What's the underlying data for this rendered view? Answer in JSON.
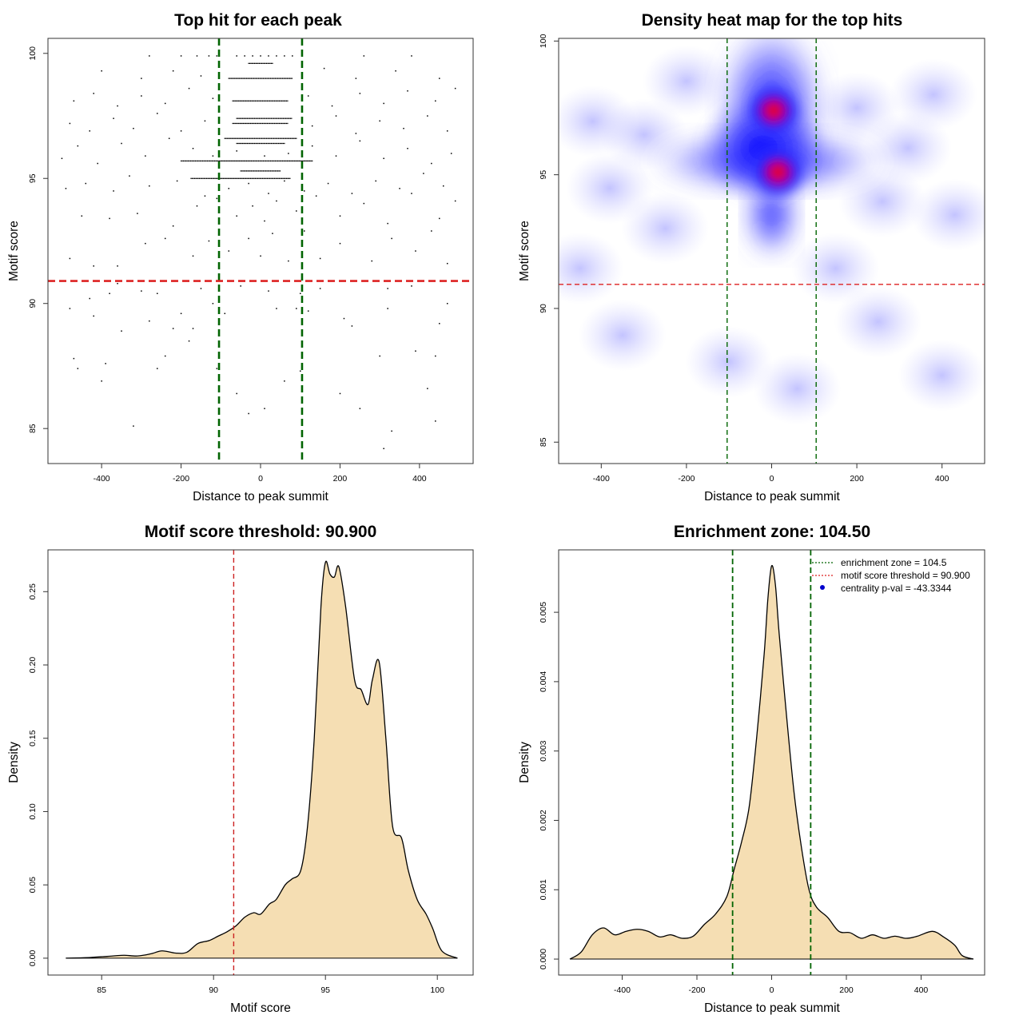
{
  "chart_data": [
    {
      "type": "scatter",
      "title": "Top hit for each peak",
      "xlabel": "Distance to peak summit",
      "ylabel": "Motif score",
      "xlim": [
        -535,
        535
      ],
      "ylim": [
        83.6,
        100.6
      ],
      "xticks": [
        -400,
        -200,
        0,
        200,
        400
      ],
      "xtick_labels": [
        "-400",
        "-200",
        "0",
        "200",
        "400"
      ],
      "yticks": [
        85,
        90,
        95,
        100
      ],
      "ytick_labels": [
        "85",
        "90",
        "95",
        "100"
      ],
      "grid": false,
      "point_color": "#000000",
      "dense_rows": [
        {
          "y": 95.7,
          "x_range": [
            -200,
            130
          ]
        },
        {
          "y": 95.0,
          "x_range": [
            -175,
            75
          ]
        },
        {
          "y": 97.4,
          "x_range": [
            -60,
            80
          ]
        },
        {
          "y": 97.2,
          "x_range": [
            -70,
            70
          ]
        },
        {
          "y": 96.6,
          "x_range": [
            -90,
            90
          ]
        },
        {
          "y": 96.4,
          "x_range": [
            -60,
            60
          ]
        },
        {
          "y": 98.1,
          "x_range": [
            -70,
            70
          ]
        },
        {
          "y": 95.3,
          "x_range": [
            -50,
            50
          ]
        },
        {
          "y": 99.0,
          "x_range": [
            -80,
            80
          ]
        },
        {
          "y": 99.6,
          "x_range": [
            -30,
            30
          ]
        }
      ],
      "points": [
        [
          -320,
          85.1
        ],
        [
          310,
          84.2
        ],
        [
          330,
          84.9
        ],
        [
          440,
          85.3
        ],
        [
          -470,
          87.8
        ],
        [
          -460,
          87.4
        ],
        [
          -400,
          86.9
        ],
        [
          -390,
          87.6
        ],
        [
          -260,
          87.4
        ],
        [
          -240,
          87.9
        ],
        [
          -110,
          87.4
        ],
        [
          -60,
          86.4
        ],
        [
          -30,
          85.6
        ],
        [
          10,
          85.8
        ],
        [
          60,
          86.9
        ],
        [
          100,
          87.3
        ],
        [
          200,
          86.4
        ],
        [
          250,
          85.8
        ],
        [
          420,
          86.6
        ],
        [
          440,
          87.9
        ],
        [
          390,
          88.1
        ],
        [
          300,
          87.9
        ],
        [
          -180,
          88.5
        ],
        [
          -170,
          89.0
        ],
        [
          -220,
          89.0
        ],
        [
          -280,
          89.3
        ],
        [
          -350,
          88.9
        ],
        [
          -420,
          89.5
        ],
        [
          -430,
          90.2
        ],
        [
          -480,
          89.8
        ],
        [
          -200,
          89.6
        ],
        [
          -120,
          90.0
        ],
        [
          -90,
          89.6
        ],
        [
          40,
          89.8
        ],
        [
          90,
          89.8
        ],
        [
          100,
          90.4
        ],
        [
          120,
          89.7
        ],
        [
          210,
          89.4
        ],
        [
          230,
          89.1
        ],
        [
          320,
          89.8
        ],
        [
          450,
          89.2
        ],
        [
          470,
          90.0
        ],
        [
          -300,
          90.5
        ],
        [
          -260,
          90.4
        ],
        [
          -150,
          90.6
        ],
        [
          -50,
          90.7
        ],
        [
          20,
          90.5
        ],
        [
          150,
          90.6
        ],
        [
          320,
          90.6
        ],
        [
          380,
          90.7
        ],
        [
          -380,
          90.4
        ],
        [
          -360,
          90.8
        ],
        [
          -480,
          91.8
        ],
        [
          -420,
          91.5
        ],
        [
          -360,
          91.5
        ],
        [
          -290,
          92.4
        ],
        [
          -240,
          92.6
        ],
        [
          -170,
          91.9
        ],
        [
          -130,
          92.5
        ],
        [
          -80,
          92.1
        ],
        [
          -30,
          92.6
        ],
        [
          0,
          91.9
        ],
        [
          30,
          92.8
        ],
        [
          70,
          91.7
        ],
        [
          110,
          92.9
        ],
        [
          150,
          91.8
        ],
        [
          200,
          92.4
        ],
        [
          280,
          91.7
        ],
        [
          330,
          92.6
        ],
        [
          390,
          92.1
        ],
        [
          430,
          92.9
        ],
        [
          470,
          91.6
        ],
        [
          -450,
          93.5
        ],
        [
          -380,
          93.4
        ],
        [
          -310,
          93.6
        ],
        [
          -220,
          93.1
        ],
        [
          -160,
          93.9
        ],
        [
          -110,
          94.2
        ],
        [
          -60,
          93.5
        ],
        [
          -20,
          93.9
        ],
        [
          10,
          93.3
        ],
        [
          40,
          94.1
        ],
        [
          90,
          93.7
        ],
        [
          140,
          94.3
        ],
        [
          200,
          93.5
        ],
        [
          260,
          94.0
        ],
        [
          320,
          93.2
        ],
        [
          380,
          94.4
        ],
        [
          450,
          93.4
        ],
        [
          490,
          94.1
        ],
        [
          -490,
          94.6
        ],
        [
          -440,
          94.8
        ],
        [
          -370,
          94.5
        ],
        [
          -330,
          95.1
        ],
        [
          -280,
          94.7
        ],
        [
          -210,
          94.9
        ],
        [
          -140,
          94.3
        ],
        [
          -80,
          94.6
        ],
        [
          -30,
          94.8
        ],
        [
          20,
          94.4
        ],
        [
          60,
          94.9
        ],
        [
          110,
          94.5
        ],
        [
          170,
          94.8
        ],
        [
          230,
          94.4
        ],
        [
          290,
          94.9
        ],
        [
          350,
          94.6
        ],
        [
          410,
          95.2
        ],
        [
          460,
          94.7
        ],
        [
          -500,
          95.8
        ],
        [
          -460,
          96.3
        ],
        [
          -410,
          95.6
        ],
        [
          -350,
          96.4
        ],
        [
          -290,
          95.9
        ],
        [
          -230,
          96.6
        ],
        [
          -170,
          96.2
        ],
        [
          -120,
          95.9
        ],
        [
          -60,
          96.1
        ],
        [
          10,
          95.9
        ],
        [
          70,
          96.0
        ],
        [
          130,
          96.3
        ],
        [
          190,
          95.9
        ],
        [
          250,
          96.5
        ],
        [
          310,
          95.8
        ],
        [
          370,
          96.2
        ],
        [
          430,
          95.6
        ],
        [
          480,
          96.0
        ],
        [
          -480,
          97.2
        ],
        [
          -430,
          96.9
        ],
        [
          -370,
          97.4
        ],
        [
          -320,
          97.0
        ],
        [
          -260,
          97.6
        ],
        [
          -200,
          96.9
        ],
        [
          -140,
          97.3
        ],
        [
          130,
          97.1
        ],
        [
          190,
          97.5
        ],
        [
          240,
          96.8
        ],
        [
          300,
          97.3
        ],
        [
          360,
          97.0
        ],
        [
          420,
          97.5
        ],
        [
          470,
          96.9
        ],
        [
          -470,
          98.1
        ],
        [
          -420,
          98.4
        ],
        [
          -360,
          97.9
        ],
        [
          -300,
          98.3
        ],
        [
          -240,
          98.0
        ],
        [
          -180,
          98.6
        ],
        [
          -120,
          98.2
        ],
        [
          120,
          98.3
        ],
        [
          180,
          97.9
        ],
        [
          250,
          98.4
        ],
        [
          310,
          98.0
        ],
        [
          370,
          98.5
        ],
        [
          440,
          98.1
        ],
        [
          490,
          98.6
        ],
        [
          -400,
          99.3
        ],
        [
          -300,
          99.0
        ],
        [
          -220,
          99.3
        ],
        [
          -150,
          99.1
        ],
        [
          160,
          99.4
        ],
        [
          240,
          99.0
        ],
        [
          340,
          99.3
        ],
        [
          450,
          99.0
        ],
        [
          -280,
          99.9
        ],
        [
          -200,
          99.9
        ],
        [
          -160,
          99.9
        ],
        [
          -130,
          99.9
        ],
        [
          -110,
          99.9
        ],
        [
          -60,
          99.9
        ],
        [
          -40,
          99.9
        ],
        [
          -20,
          99.9
        ],
        [
          0,
          99.9
        ],
        [
          20,
          99.9
        ],
        [
          40,
          99.9
        ],
        [
          60,
          99.9
        ],
        [
          80,
          99.9
        ],
        [
          260,
          99.9
        ],
        [
          380,
          99.9
        ]
      ],
      "vlines": [
        {
          "x": -104.5,
          "color": "#006400",
          "style": "dashed"
        },
        {
          "x": 104.5,
          "color": "#006400",
          "style": "dashed"
        }
      ],
      "hlines": [
        {
          "y": 90.9,
          "color": "#dd2222",
          "style": "dashed"
        }
      ]
    },
    {
      "type": "heatmap",
      "title": "Density heat map for the top hits",
      "xlabel": "Distance to peak summit",
      "ylabel": "Motif score",
      "xlim": [
        -500,
        500
      ],
      "ylim": [
        84.2,
        100.1
      ],
      "xticks": [
        -400,
        -200,
        0,
        200,
        400
      ],
      "xtick_labels": [
        "-400",
        "-200",
        "0",
        "200",
        "400"
      ],
      "yticks": [
        85,
        90,
        95,
        100
      ],
      "ytick_labels": [
        "85",
        "90",
        "95",
        "100"
      ],
      "grid": false,
      "color_scale": [
        "#ffffff",
        "#0000ff",
        "#ff0000"
      ],
      "hotspots": [
        {
          "x": 5,
          "y": 97.4,
          "level": 1.0
        },
        {
          "x": 15,
          "y": 95.1,
          "level": 1.0
        }
      ],
      "vlines": [
        {
          "x": -104.5,
          "color": "#006400",
          "style": "dashed"
        },
        {
          "x": 104.5,
          "color": "#006400",
          "style": "dashed"
        }
      ],
      "hlines": [
        {
          "y": 90.9,
          "color": "#dd2222",
          "style": "dashed"
        }
      ]
    },
    {
      "type": "area",
      "title": "Motif score threshold: 90.900",
      "xlabel": "Motif score",
      "ylabel": "Density",
      "xlim": [
        82.6,
        101.6
      ],
      "ylim": [
        -0.0115,
        0.2785
      ],
      "xticks": [
        85,
        90,
        95,
        100
      ],
      "xtick_labels": [
        "85",
        "90",
        "95",
        "100"
      ],
      "yticks": [
        0,
        0.05,
        0.1,
        0.15,
        0.2,
        0.25
      ],
      "ytick_labels": [
        "0.00",
        "0.05",
        "0.10",
        "0.15",
        "0.20",
        "0.25"
      ],
      "grid": false,
      "fill_color": "#f5deb3",
      "x": [
        83.4,
        84.5,
        85.5,
        86.0,
        86.6,
        87.2,
        87.7,
        88.3,
        88.8,
        89.3,
        89.8,
        90.2,
        90.6,
        91.0,
        91.4,
        91.8,
        92.1,
        92.5,
        92.8,
        93.2,
        93.5,
        93.9,
        94.2,
        94.5,
        94.8,
        95.0,
        95.2,
        95.4,
        95.6,
        95.9,
        96.3,
        96.6,
        96.9,
        97.1,
        97.4,
        97.7,
        98.0,
        98.4,
        98.7,
        99.1,
        99.5,
        99.8,
        100.2,
        100.9
      ],
      "y": [
        0.0,
        0.0005,
        0.0015,
        0.002,
        0.0015,
        0.003,
        0.005,
        0.0035,
        0.004,
        0.01,
        0.012,
        0.015,
        0.018,
        0.022,
        0.028,
        0.031,
        0.03,
        0.037,
        0.04,
        0.05,
        0.054,
        0.06,
        0.09,
        0.15,
        0.24,
        0.27,
        0.262,
        0.26,
        0.267,
        0.24,
        0.19,
        0.183,
        0.173,
        0.19,
        0.202,
        0.15,
        0.09,
        0.082,
        0.06,
        0.04,
        0.03,
        0.02,
        0.005,
        0.0
      ],
      "vlines": [
        {
          "x": 90.9,
          "color": "#cc2222",
          "style": "dashed"
        }
      ]
    },
    {
      "type": "area",
      "title": "Enrichment zone: 104.50",
      "xlabel": "Distance to peak summit",
      "ylabel": "Density",
      "xlim": [
        -570,
        570
      ],
      "ylim": [
        -0.00023,
        0.0059
      ],
      "xticks": [
        -400,
        -200,
        0,
        200,
        400
      ],
      "xtick_labels": [
        "-400",
        "-200",
        "0",
        "200",
        "400"
      ],
      "yticks": [
        0,
        0.001,
        0.002,
        0.003,
        0.004,
        0.005
      ],
      "ytick_labels": [
        "0.000",
        "0.001",
        "0.002",
        "0.003",
        "0.004",
        "0.005"
      ],
      "grid": false,
      "fill_color": "#f5deb3",
      "x": [
        -540,
        -510,
        -480,
        -450,
        -420,
        -390,
        -360,
        -330,
        -300,
        -270,
        -240,
        -210,
        -180,
        -150,
        -120,
        -100,
        -80,
        -60,
        -40,
        -20,
        -10,
        0,
        10,
        20,
        40,
        60,
        80,
        100,
        120,
        150,
        180,
        210,
        240,
        270,
        300,
        330,
        360,
        390,
        430,
        460,
        490,
        510,
        540
      ],
      "y": [
        0.0,
        0.0001,
        0.00035,
        0.00045,
        0.00035,
        0.0004,
        0.00043,
        0.0004,
        0.00032,
        0.00035,
        0.0003,
        0.00033,
        0.0005,
        0.00065,
        0.0009,
        0.0013,
        0.0017,
        0.0022,
        0.0032,
        0.0044,
        0.0052,
        0.00567,
        0.0054,
        0.0047,
        0.0035,
        0.0024,
        0.0016,
        0.001,
        0.00075,
        0.0006,
        0.0004,
        0.00038,
        0.0003,
        0.00035,
        0.0003,
        0.00033,
        0.0003,
        0.00033,
        0.0004,
        0.00032,
        0.0002,
        5e-05,
        0.0
      ],
      "vlines": [
        {
          "x": -104.5,
          "color": "#006400",
          "style": "dashed"
        },
        {
          "x": 104.5,
          "color": "#006400",
          "style": "dashed"
        }
      ],
      "legend": {
        "position": "top-right",
        "entries": [
          {
            "label": "enrichment zone = 104.5",
            "color": "#006400",
            "style": "dotted-line"
          },
          {
            "label": "motif score threshold = 90.900",
            "color": "#dd2222",
            "style": "dotted-line"
          },
          {
            "label": "centrality p-val = -43.3344",
            "color": "#0000cc",
            "style": "point"
          }
        ]
      }
    }
  ]
}
